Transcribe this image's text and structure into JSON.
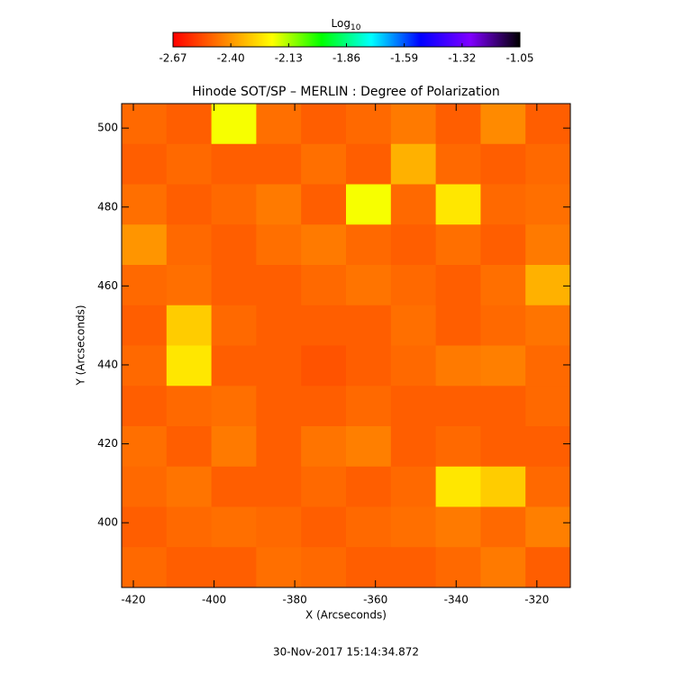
{
  "chart_data": {
    "type": "heatmap",
    "title": "Hinode SOT/SP – MERLIN : Degree of Polarization",
    "xlabel": "X (Arcseconds)",
    "ylabel": "Y (Arcseconds)",
    "footer": "30-Nov-2017 15:14:34.872",
    "colorbar_label": {
      "base": "Log",
      "subscript": "10"
    },
    "colormap": [
      "#ff0000",
      "#ff8000",
      "#ffff00",
      "#00ff00",
      "#00ffff",
      "#0000ff",
      "#8000ff",
      "#000000"
    ],
    "clim": [
      -2.67,
      -1.05
    ],
    "cticks": [
      -2.67,
      {
        "value": -2.4,
        "label": "-2.40"
      },
      -2.13,
      -1.86,
      -1.59,
      -1.32,
      -1.05
    ],
    "xlim": [
      -422.9,
      -311.7
    ],
    "ylim": [
      383.6,
      506.2
    ],
    "xticks": [
      -420,
      -400,
      -380,
      -360,
      -340,
      -320
    ],
    "yticks": [
      400,
      420,
      440,
      460,
      480,
      500
    ],
    "z": [
      [
        -2.48,
        -2.5,
        -2.2,
        -2.47,
        -2.5,
        -2.48,
        -2.45,
        -2.5,
        -2.42,
        -2.5
      ],
      [
        -2.5,
        -2.48,
        -2.5,
        -2.5,
        -2.47,
        -2.5,
        -2.35,
        -2.48,
        -2.5,
        -2.48
      ],
      [
        -2.47,
        -2.5,
        -2.48,
        -2.45,
        -2.5,
        -2.2,
        -2.48,
        -2.25,
        -2.48,
        -2.47
      ],
      [
        -2.4,
        -2.48,
        -2.5,
        -2.47,
        -2.45,
        -2.48,
        -2.5,
        -2.47,
        -2.5,
        -2.45
      ],
      [
        -2.48,
        -2.47,
        -2.5,
        -2.5,
        -2.48,
        -2.46,
        -2.48,
        -2.5,
        -2.47,
        -2.35
      ],
      [
        -2.5,
        -2.3,
        -2.48,
        -2.5,
        -2.5,
        -2.5,
        -2.47,
        -2.5,
        -2.48,
        -2.46
      ],
      [
        -2.48,
        -2.25,
        -2.5,
        -2.5,
        -2.52,
        -2.5,
        -2.48,
        -2.45,
        -2.44,
        -2.48
      ],
      [
        -2.5,
        -2.48,
        -2.47,
        -2.5,
        -2.5,
        -2.48,
        -2.5,
        -2.5,
        -2.5,
        -2.48
      ],
      [
        -2.47,
        -2.5,
        -2.45,
        -2.5,
        -2.46,
        -2.44,
        -2.5,
        -2.48,
        -2.5,
        -2.5
      ],
      [
        -2.48,
        -2.46,
        -2.5,
        -2.5,
        -2.48,
        -2.5,
        -2.48,
        -2.25,
        -2.3,
        -2.48
      ],
      [
        -2.5,
        -2.48,
        -2.47,
        -2.48,
        -2.5,
        -2.48,
        -2.47,
        -2.45,
        -2.48,
        -2.44
      ],
      [
        -2.48,
        -2.5,
        -2.5,
        -2.47,
        -2.48,
        -2.5,
        -2.5,
        -2.48,
        -2.45,
        -2.5
      ]
    ]
  }
}
